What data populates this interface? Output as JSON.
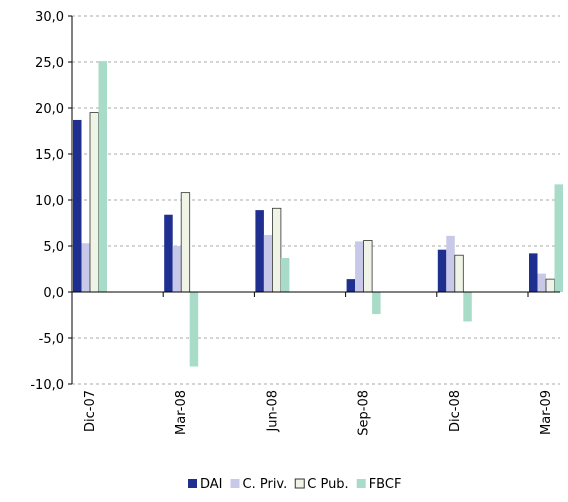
{
  "chart_data": {
    "type": "bar",
    "categories": [
      "Dic-07",
      "Mar-08",
      "Jun-08",
      "Sep-08",
      "Dic-08",
      "Mar-09"
    ],
    "series": [
      {
        "name": "DAI",
        "color": "#1f2f8f",
        "values": [
          18.7,
          8.4,
          8.9,
          1.4,
          4.6,
          4.2
        ]
      },
      {
        "name": "C. Priv.",
        "color": "#c8c8e8",
        "values": [
          5.3,
          5.0,
          6.2,
          5.5,
          6.1,
          2.0
        ]
      },
      {
        "name": "C Pub.",
        "color": "#f0f4e6",
        "values": [
          19.5,
          10.8,
          9.1,
          5.6,
          4.0,
          1.4
        ]
      },
      {
        "name": "FBCF",
        "color": "#a8dcc8",
        "values": [
          25.1,
          -8.1,
          3.7,
          -2.4,
          -3.2,
          11.7
        ]
      }
    ],
    "ylim": [
      -10,
      30
    ],
    "yticks": [
      {
        "value": -10,
        "label": "-10,0"
      },
      {
        "value": -5,
        "label": "-5,0"
      },
      {
        "value": 0,
        "label": "0,0"
      },
      {
        "value": 5,
        "label": "5,0"
      },
      {
        "value": 10,
        "label": "10,0"
      },
      {
        "value": 15,
        "label": "15,0"
      },
      {
        "value": 20,
        "label": "20,0"
      },
      {
        "value": 25,
        "label": "25,0"
      },
      {
        "value": 30,
        "label": "30,0"
      }
    ],
    "grid": true,
    "legend": "bottom"
  }
}
